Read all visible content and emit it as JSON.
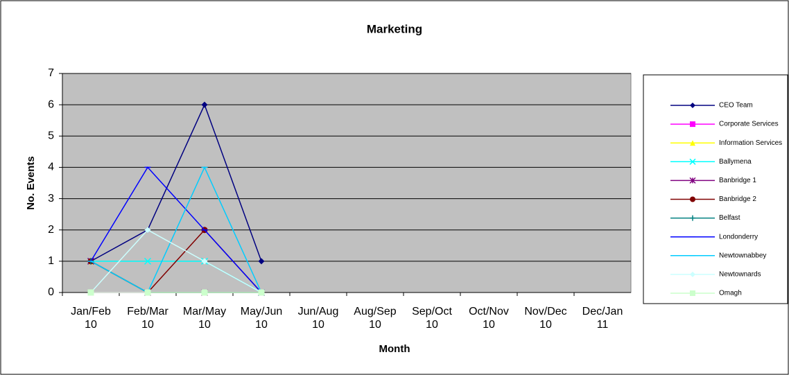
{
  "chart_data": {
    "type": "line",
    "title": "Marketing",
    "x_label": "Month",
    "y_label": "No. Events",
    "categories": [
      "Jan/Feb 10",
      "Feb/Mar 10",
      "Mar/May 10",
      "May/Jun 10",
      "Jun/Aug 10",
      "Aug/Sep 10",
      "Sep/Oct 10",
      "Oct/Nov 10",
      "Nov/Dec 10",
      "Dec/Jan 11"
    ],
    "ylim": [
      0,
      7
    ],
    "yticks": [
      0,
      1,
      2,
      3,
      4,
      5,
      6,
      7
    ],
    "grid": true,
    "legend": "right",
    "series": [
      {
        "name": "CEO Team",
        "color": "#000080",
        "marker": "diamond",
        "values": [
          1,
          2,
          6,
          1,
          null,
          null,
          null,
          null,
          null,
          null
        ]
      },
      {
        "name": "Corporate Services",
        "color": "#ff00ff",
        "marker": "square",
        "values": [
          0,
          0,
          0,
          0,
          null,
          null,
          null,
          null,
          null,
          null
        ]
      },
      {
        "name": "Information Services",
        "color": "#ffff00",
        "marker": "triangle",
        "values": [
          1,
          0,
          0,
          0,
          null,
          null,
          null,
          null,
          null,
          null
        ]
      },
      {
        "name": "Ballymena",
        "color": "#00ffff",
        "marker": "x",
        "values": [
          1,
          1,
          1,
          0,
          null,
          null,
          null,
          null,
          null,
          null
        ]
      },
      {
        "name": "Banbridge 1",
        "color": "#800080",
        "marker": "star",
        "values": [
          1,
          0,
          0,
          0,
          null,
          null,
          null,
          null,
          null,
          null
        ]
      },
      {
        "name": "Banbridge 2",
        "color": "#800000",
        "marker": "circle",
        "values": [
          1,
          0,
          2,
          0,
          null,
          null,
          null,
          null,
          null,
          null
        ]
      },
      {
        "name": "Belfast",
        "color": "#008080",
        "marker": "plus",
        "values": [
          1,
          0,
          0,
          0,
          null,
          null,
          null,
          null,
          null,
          null
        ]
      },
      {
        "name": "Londonderry",
        "color": "#0000ff",
        "marker": "dash",
        "values": [
          1,
          4,
          2,
          0,
          null,
          null,
          null,
          null,
          null,
          null
        ]
      },
      {
        "name": "Newtownabbey",
        "color": "#00ccff",
        "marker": "dash",
        "values": [
          1,
          0,
          4,
          0,
          null,
          null,
          null,
          null,
          null,
          null
        ]
      },
      {
        "name": "Newtownards",
        "color": "#ccffff",
        "marker": "diamond",
        "values": [
          0,
          2,
          1,
          0,
          null,
          null,
          null,
          null,
          null,
          null
        ]
      },
      {
        "name": "Omagh",
        "color": "#ccffcc",
        "marker": "square",
        "values": [
          0,
          0,
          0,
          0,
          null,
          null,
          null,
          null,
          null,
          null
        ]
      }
    ]
  }
}
